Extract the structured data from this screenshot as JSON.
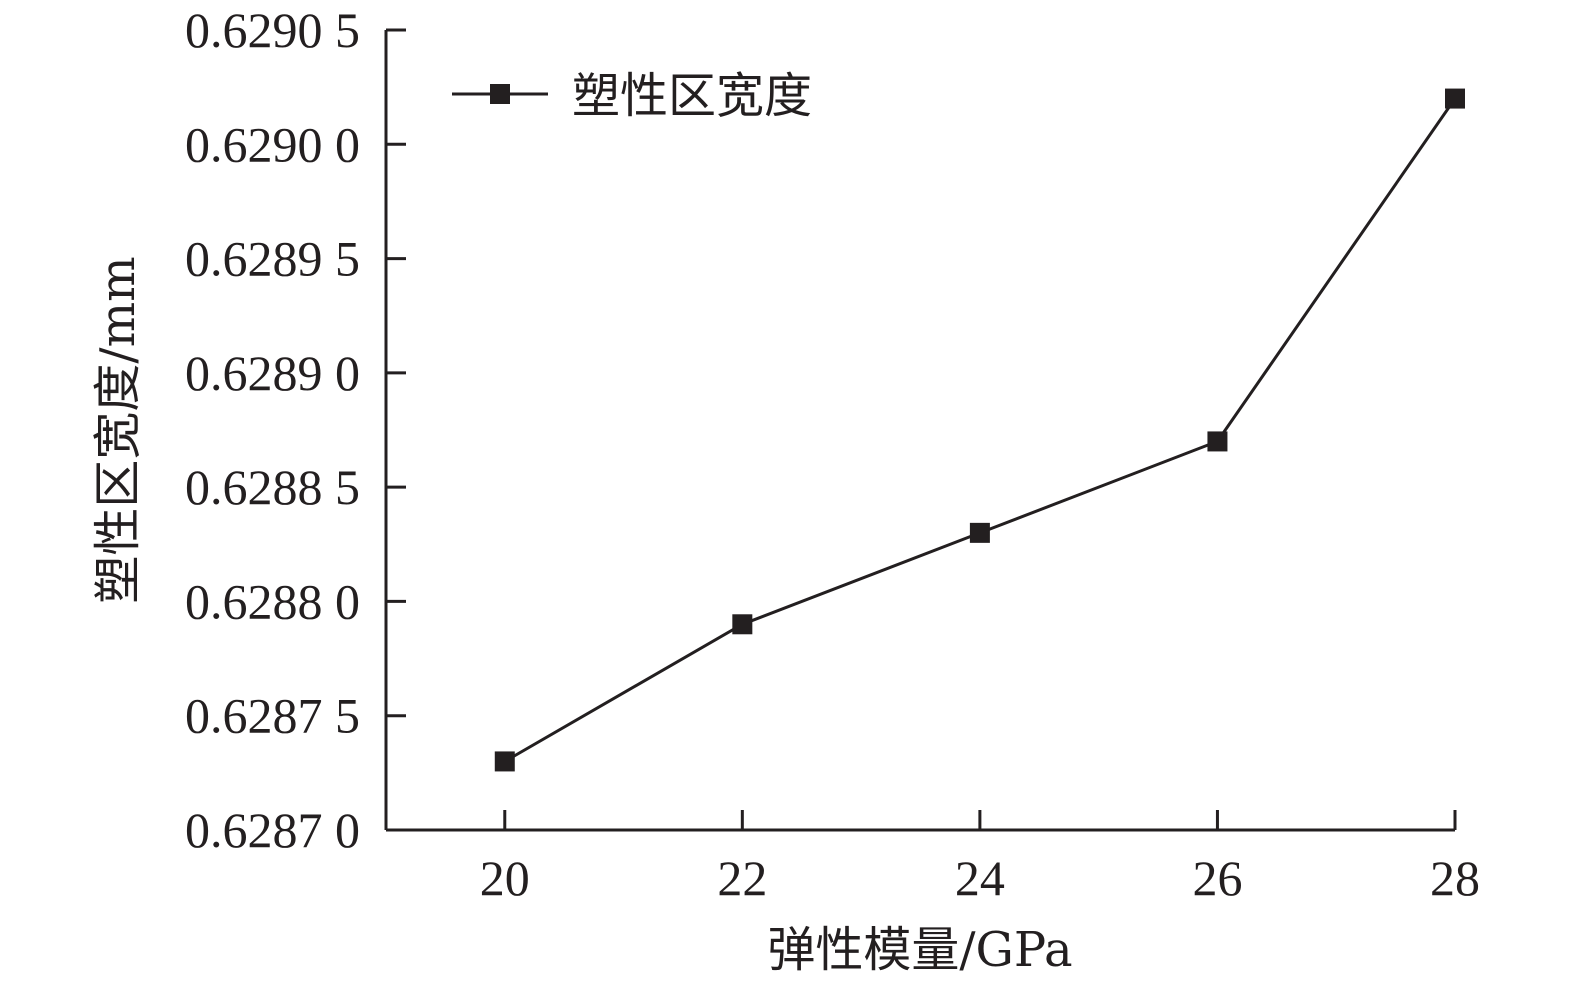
{
  "chart_data": {
    "type": "line",
    "xlabel": "弹性模量/GPa",
    "ylabel": "塑性区宽度/mm",
    "x": [
      20,
      22,
      24,
      26,
      28
    ],
    "x_ticks": [
      "20",
      "22",
      "24",
      "26",
      "28"
    ],
    "xlim": [
      19,
      28
    ],
    "ylim": [
      0.6287,
      0.62905
    ],
    "y_ticks": [
      {
        "value": 0.6287,
        "label": "0.6287 0"
      },
      {
        "value": 0.62875,
        "label": "0.6287 5"
      },
      {
        "value": 0.6288,
        "label": "0.6288 0"
      },
      {
        "value": 0.62885,
        "label": "0.6288 5"
      },
      {
        "value": 0.6289,
        "label": "0.6289 0"
      },
      {
        "value": 0.62895,
        "label": "0.6289 5"
      },
      {
        "value": 0.629,
        "label": "0.6290 0"
      },
      {
        "value": 0.62905,
        "label": "0.6290 5"
      }
    ],
    "series": [
      {
        "name": "塑性区宽度",
        "marker": "square",
        "color": "#231f20",
        "values": [
          0.62873,
          0.62879,
          0.62883,
          0.62887,
          0.62902
        ]
      }
    ],
    "legend": {
      "position": "top-left"
    },
    "grid": false
  }
}
